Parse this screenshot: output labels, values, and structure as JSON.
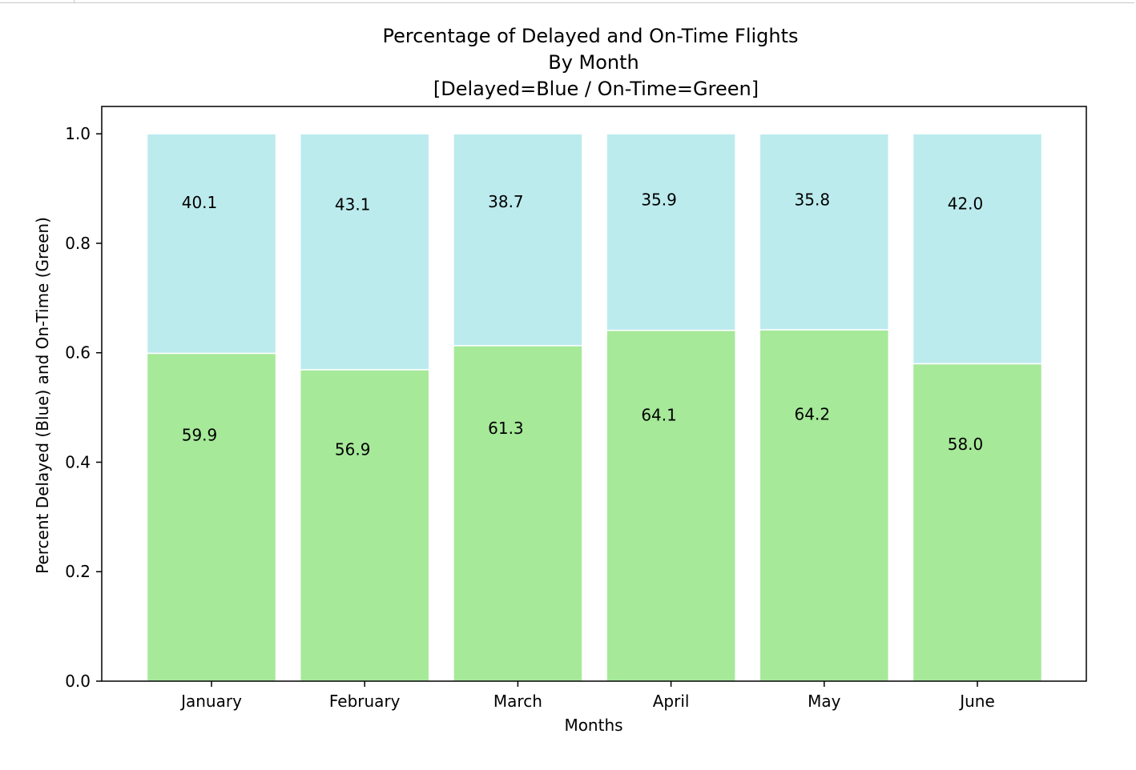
{
  "chart_data": {
    "type": "bar",
    "stacked": true,
    "title_lines": [
      "Percentage of Delayed and On-Time Flights",
      "By Month",
      "[Delayed=Blue / On-Time=Green]"
    ],
    "xlabel": "Months",
    "ylabel": "Percent Delayed (Blue) and On-Time (Green)",
    "ylim": [
      0,
      1.05
    ],
    "y_ticks": [
      0.0,
      0.2,
      0.4,
      0.6,
      0.8,
      1.0
    ],
    "y_tick_labels": [
      "0.0",
      "0.2",
      "0.4",
      "0.6",
      "0.8",
      "1.0"
    ],
    "categories": [
      "January",
      "February",
      "March",
      "April",
      "May",
      "June"
    ],
    "grid": false,
    "series": [
      {
        "key": "on_time",
        "color": "#a6e999",
        "values": [
          0.599,
          0.569,
          0.613,
          0.641,
          0.642,
          0.58
        ],
        "labels": [
          "59.9",
          "56.9",
          "61.3",
          "64.1",
          "64.2",
          "58.0"
        ]
      },
      {
        "key": "delayed",
        "color": "#bcebee",
        "values": [
          0.401,
          0.431,
          0.387,
          0.359,
          0.358,
          0.42
        ],
        "labels": [
          "40.1",
          "43.1",
          "38.7",
          "35.9",
          "35.8",
          "42.0"
        ]
      }
    ]
  }
}
